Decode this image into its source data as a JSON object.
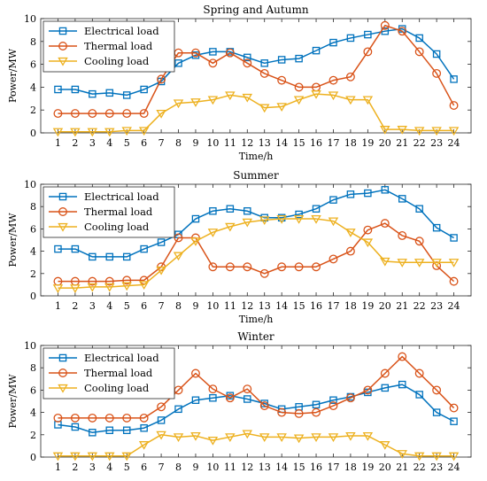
{
  "colors": {
    "electrical": "#0072BD",
    "thermal": "#D95319",
    "cooling": "#EDB120",
    "axis": "#262626",
    "grid": "#d9d9d9"
  },
  "chart_data": [
    {
      "type": "line",
      "title": "Spring and Autumn",
      "xlabel": "Time/h",
      "ylabel": "Power/MW",
      "xlim": [
        0,
        25
      ],
      "ylim": [
        0,
        10
      ],
      "x": [
        1,
        2,
        3,
        4,
        5,
        6,
        7,
        8,
        9,
        10,
        11,
        12,
        13,
        14,
        15,
        16,
        17,
        18,
        19,
        20,
        21,
        22,
        23,
        24
      ],
      "xticks": [
        1,
        2,
        3,
        4,
        5,
        6,
        7,
        8,
        9,
        10,
        11,
        12,
        13,
        14,
        15,
        16,
        17,
        18,
        19,
        20,
        21,
        22,
        23,
        24
      ],
      "yticks": [
        0,
        2,
        4,
        6,
        8,
        10
      ],
      "grid": false,
      "legend_position": "top-left",
      "series": [
        {
          "name": "Electrical load",
          "marker": "square",
          "color": "#0072BD",
          "values": [
            3.8,
            3.8,
            3.4,
            3.5,
            3.3,
            3.8,
            4.5,
            6.1,
            6.8,
            7.1,
            7.1,
            6.6,
            6.1,
            6.4,
            6.5,
            7.2,
            7.9,
            8.3,
            8.6,
            8.9,
            9.1,
            8.3,
            6.9,
            4.7
          ]
        },
        {
          "name": "Thermal load",
          "marker": "circle",
          "color": "#D95319",
          "values": [
            1.7,
            1.7,
            1.7,
            1.7,
            1.7,
            1.7,
            4.7,
            7.0,
            7.0,
            6.1,
            7.0,
            6.1,
            5.2,
            4.6,
            4.0,
            4.0,
            4.6,
            4.9,
            7.1,
            9.4,
            8.9,
            7.1,
            5.2,
            2.4
          ]
        },
        {
          "name": "Cooling load",
          "marker": "triangle-down",
          "color": "#EDB120",
          "values": [
            0.1,
            0.1,
            0.1,
            0.1,
            0.2,
            0.2,
            1.7,
            2.6,
            2.7,
            2.9,
            3.3,
            3.1,
            2.2,
            2.3,
            2.9,
            3.4,
            3.3,
            2.9,
            2.9,
            0.3,
            0.3,
            0.2,
            0.2,
            0.2
          ]
        }
      ]
    },
    {
      "type": "line",
      "title": "Summer",
      "xlabel": "Time/h",
      "ylabel": "Power/MW",
      "xlim": [
        0,
        25
      ],
      "ylim": [
        0,
        10
      ],
      "x": [
        1,
        2,
        3,
        4,
        5,
        6,
        7,
        8,
        9,
        10,
        11,
        12,
        13,
        14,
        15,
        16,
        17,
        18,
        19,
        20,
        21,
        22,
        23,
        24
      ],
      "xticks": [
        1,
        2,
        3,
        4,
        5,
        6,
        7,
        8,
        9,
        10,
        11,
        12,
        13,
        14,
        15,
        16,
        17,
        18,
        19,
        20,
        21,
        22,
        23,
        24
      ],
      "yticks": [
        0,
        2,
        4,
        6,
        8,
        10
      ],
      "grid": false,
      "legend_position": "top-left",
      "series": [
        {
          "name": "Electrical load",
          "marker": "square",
          "color": "#0072BD",
          "values": [
            4.2,
            4.2,
            3.5,
            3.5,
            3.5,
            4.2,
            4.8,
            5.5,
            6.9,
            7.6,
            7.8,
            7.6,
            7.0,
            7.0,
            7.3,
            7.8,
            8.6,
            9.1,
            9.2,
            9.5,
            8.7,
            7.8,
            6.1,
            5.2
          ]
        },
        {
          "name": "Thermal load",
          "marker": "circle",
          "color": "#D95319",
          "values": [
            1.3,
            1.3,
            1.3,
            1.3,
            1.4,
            1.4,
            2.6,
            5.2,
            5.2,
            2.6,
            2.6,
            2.6,
            2.0,
            2.6,
            2.6,
            2.6,
            3.3,
            4.0,
            5.9,
            6.5,
            5.4,
            4.9,
            2.7,
            1.3
          ]
        },
        {
          "name": "Cooling load",
          "marker": "triangle-down",
          "color": "#EDB120",
          "values": [
            0.7,
            0.7,
            0.8,
            0.8,
            0.9,
            1.0,
            2.3,
            3.6,
            4.9,
            5.7,
            6.2,
            6.6,
            6.8,
            6.9,
            6.9,
            6.9,
            6.7,
            5.7,
            4.8,
            3.1,
            3.0,
            3.0,
            3.0,
            3.0
          ]
        }
      ]
    },
    {
      "type": "line",
      "title": "Winter",
      "xlabel": "",
      "ylabel": "Power/MW",
      "xlim": [
        0,
        25
      ],
      "ylim": [
        0,
        10
      ],
      "x": [
        1,
        2,
        3,
        4,
        5,
        6,
        7,
        8,
        9,
        10,
        11,
        12,
        13,
        14,
        15,
        16,
        17,
        18,
        19,
        20,
        21,
        22,
        23,
        24
      ],
      "xticks": [
        1,
        2,
        3,
        4,
        5,
        6,
        7,
        8,
        9,
        10,
        11,
        12,
        13,
        14,
        15,
        16,
        17,
        18,
        19,
        20,
        21,
        22,
        23,
        24
      ],
      "yticks": [
        0,
        2,
        4,
        6,
        8,
        10
      ],
      "grid": false,
      "legend_position": "top-left",
      "series": [
        {
          "name": "Electrical load",
          "marker": "square",
          "color": "#0072BD",
          "values": [
            2.9,
            2.7,
            2.2,
            2.4,
            2.4,
            2.6,
            3.3,
            4.3,
            5.1,
            5.3,
            5.5,
            5.2,
            4.8,
            4.3,
            4.5,
            4.7,
            5.1,
            5.4,
            5.8,
            6.2,
            6.5,
            5.6,
            4.0,
            3.2
          ]
        },
        {
          "name": "Thermal load",
          "marker": "circle",
          "color": "#D95319",
          "values": [
            3.5,
            3.5,
            3.5,
            3.5,
            3.5,
            3.5,
            4.5,
            6.0,
            7.5,
            6.1,
            5.3,
            6.1,
            4.6,
            4.0,
            3.9,
            4.0,
            4.6,
            5.3,
            6.0,
            7.5,
            9.0,
            7.5,
            6.0,
            4.4
          ]
        },
        {
          "name": "Cooling load",
          "marker": "triangle-down",
          "color": "#EDB120",
          "values": [
            0.1,
            0.1,
            0.1,
            0.1,
            0.1,
            1.1,
            2.0,
            1.8,
            1.9,
            1.5,
            1.8,
            2.1,
            1.8,
            1.8,
            1.7,
            1.8,
            1.8,
            1.9,
            1.9,
            1.1,
            0.3,
            0.1,
            0.1,
            0.1
          ]
        }
      ]
    }
  ]
}
